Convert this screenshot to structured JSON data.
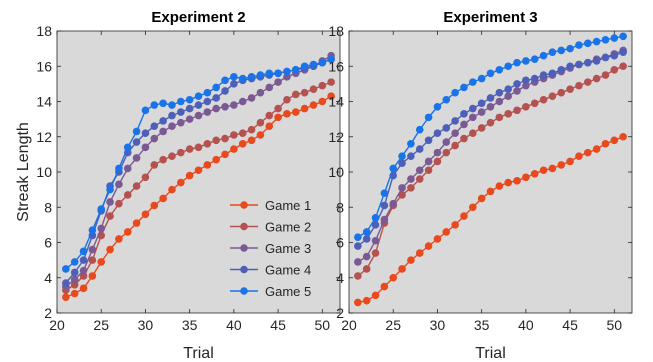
{
  "chart_data": [
    {
      "type": "line",
      "title": "Experiment 2",
      "xlabel": "Trial",
      "ylabel": "Streak Length",
      "xlim": [
        20,
        52
      ],
      "ylim": [
        2,
        18
      ],
      "x_ticks": [
        "20",
        "25",
        "30",
        "35",
        "40",
        "45",
        "50"
      ],
      "y_ticks": [
        "2",
        "4",
        "6",
        "8",
        "10",
        "12",
        "14",
        "16",
        "18"
      ],
      "grid": false,
      "background": "#d9d9d9",
      "legend": "lower-right",
      "x": [
        21,
        22,
        23,
        24,
        25,
        26,
        27,
        28,
        29,
        30,
        31,
        32,
        33,
        34,
        35,
        36,
        37,
        38,
        39,
        40,
        41,
        42,
        43,
        44,
        45,
        46,
        47,
        48,
        49,
        50,
        51
      ],
      "series": [
        {
          "name": "Game 1",
          "color": "#e8491d",
          "values": [
            2.9,
            3.1,
            3.4,
            4.1,
            4.9,
            5.6,
            6.2,
            6.6,
            7.1,
            7.6,
            8.1,
            8.5,
            9.0,
            9.4,
            9.8,
            10.1,
            10.4,
            10.7,
            11.0,
            11.3,
            11.6,
            11.8,
            12.1,
            12.6,
            13.1,
            13.3,
            13.4,
            13.6,
            13.8,
            14.0,
            14.3
          ]
        },
        {
          "name": "Game 2",
          "color": "#b5524f",
          "values": [
            3.3,
            3.6,
            4.1,
            5.0,
            6.4,
            7.5,
            8.2,
            8.7,
            9.2,
            9.7,
            10.4,
            10.7,
            10.9,
            11.1,
            11.3,
            11.4,
            11.6,
            11.8,
            11.9,
            12.1,
            12.2,
            12.4,
            12.8,
            13.2,
            13.6,
            14.1,
            14.4,
            14.5,
            14.7,
            14.9,
            15.1
          ]
        },
        {
          "name": "Game 3",
          "color": "#7b5a94",
          "values": [
            3.5,
            3.9,
            4.4,
            5.6,
            6.8,
            8.3,
            9.3,
            10.2,
            10.8,
            11.4,
            11.9,
            12.3,
            12.6,
            12.8,
            13.0,
            13.2,
            13.4,
            13.6,
            13.7,
            13.8,
            14.0,
            14.2,
            14.5,
            14.8,
            15.1,
            15.4,
            15.6,
            15.8,
            16.0,
            16.3,
            16.6
          ]
        },
        {
          "name": "Game 4",
          "color": "#4d5fb8",
          "values": [
            3.7,
            4.3,
            5.0,
            6.4,
            7.8,
            9.2,
            10.0,
            11.1,
            11.7,
            12.2,
            12.6,
            12.9,
            13.2,
            13.4,
            13.6,
            13.8,
            14.0,
            14.2,
            14.6,
            15.0,
            15.2,
            15.3,
            15.4,
            15.5,
            15.6,
            15.7,
            15.8,
            15.9,
            16.0,
            16.2,
            16.4
          ]
        },
        {
          "name": "Game 5",
          "color": "#1a73e8",
          "values": [
            4.5,
            4.9,
            5.5,
            6.7,
            7.9,
            9.0,
            10.2,
            11.4,
            12.3,
            13.5,
            13.8,
            13.9,
            13.8,
            14.0,
            14.1,
            14.3,
            14.5,
            14.8,
            15.2,
            15.4,
            15.3,
            15.4,
            15.5,
            15.6,
            15.6,
            15.7,
            15.8,
            16.0,
            16.1,
            16.2,
            16.4
          ]
        }
      ]
    },
    {
      "type": "line",
      "title": "Experiment 3",
      "xlabel": "Trial",
      "ylabel": "",
      "xlim": [
        20,
        52
      ],
      "ylim": [
        2,
        18
      ],
      "x_ticks": [
        "20",
        "25",
        "30",
        "35",
        "40",
        "45",
        "50"
      ],
      "y_ticks": [
        "2",
        "4",
        "6",
        "8",
        "10",
        "12",
        "14",
        "16",
        "18"
      ],
      "grid": false,
      "background": "#d9d9d9",
      "x": [
        21,
        22,
        23,
        24,
        25,
        26,
        27,
        28,
        29,
        30,
        31,
        32,
        33,
        34,
        35,
        36,
        37,
        38,
        39,
        40,
        41,
        42,
        43,
        44,
        45,
        46,
        47,
        48,
        49,
        50,
        51
      ],
      "series": [
        {
          "name": "Game 1",
          "color": "#e8491d",
          "values": [
            2.6,
            2.7,
            3.0,
            3.5,
            4.0,
            4.5,
            5.0,
            5.4,
            5.8,
            6.2,
            6.6,
            7.0,
            7.5,
            8.0,
            8.5,
            8.9,
            9.2,
            9.4,
            9.5,
            9.7,
            9.9,
            10.1,
            10.2,
            10.4,
            10.6,
            10.9,
            11.1,
            11.3,
            11.6,
            11.8,
            12.0
          ]
        },
        {
          "name": "Game 2",
          "color": "#b5524f",
          "values": [
            4.1,
            4.5,
            5.4,
            7.1,
            8.1,
            8.7,
            9.1,
            9.6,
            10.1,
            10.6,
            11.1,
            11.5,
            11.9,
            12.2,
            12.5,
            12.8,
            13.1,
            13.3,
            13.5,
            13.7,
            13.9,
            14.1,
            14.3,
            14.5,
            14.7,
            14.9,
            15.1,
            15.3,
            15.5,
            15.8,
            16.0
          ]
        },
        {
          "name": "Game 3",
          "color": "#7b5a94",
          "values": [
            4.9,
            5.2,
            6.1,
            7.3,
            8.2,
            9.1,
            9.6,
            10.1,
            10.6,
            11.1,
            11.7,
            12.2,
            12.7,
            13.1,
            13.4,
            13.7,
            14.0,
            14.3,
            14.6,
            14.9,
            15.1,
            15.3,
            15.5,
            15.7,
            15.9,
            16.1,
            16.2,
            16.4,
            16.5,
            16.7,
            16.9
          ]
        },
        {
          "name": "Game 4",
          "color": "#4d5fb8",
          "values": [
            5.8,
            6.2,
            7.0,
            8.1,
            9.8,
            10.5,
            10.9,
            11.3,
            11.8,
            12.2,
            12.5,
            12.9,
            13.3,
            13.6,
            13.9,
            14.2,
            14.5,
            14.7,
            15.0,
            15.2,
            15.3,
            15.5,
            15.6,
            15.8,
            16.0,
            16.1,
            16.2,
            16.3,
            16.5,
            16.6,
            16.8
          ]
        },
        {
          "name": "Game 5",
          "color": "#1a73e8",
          "values": [
            6.3,
            6.6,
            7.4,
            8.8,
            10.2,
            10.9,
            11.6,
            12.4,
            13.1,
            13.7,
            14.1,
            14.5,
            14.8,
            15.1,
            15.3,
            15.6,
            15.8,
            16.0,
            16.2,
            16.3,
            16.4,
            16.6,
            16.8,
            16.9,
            17.0,
            17.2,
            17.3,
            17.4,
            17.5,
            17.6,
            17.7
          ]
        }
      ]
    }
  ]
}
